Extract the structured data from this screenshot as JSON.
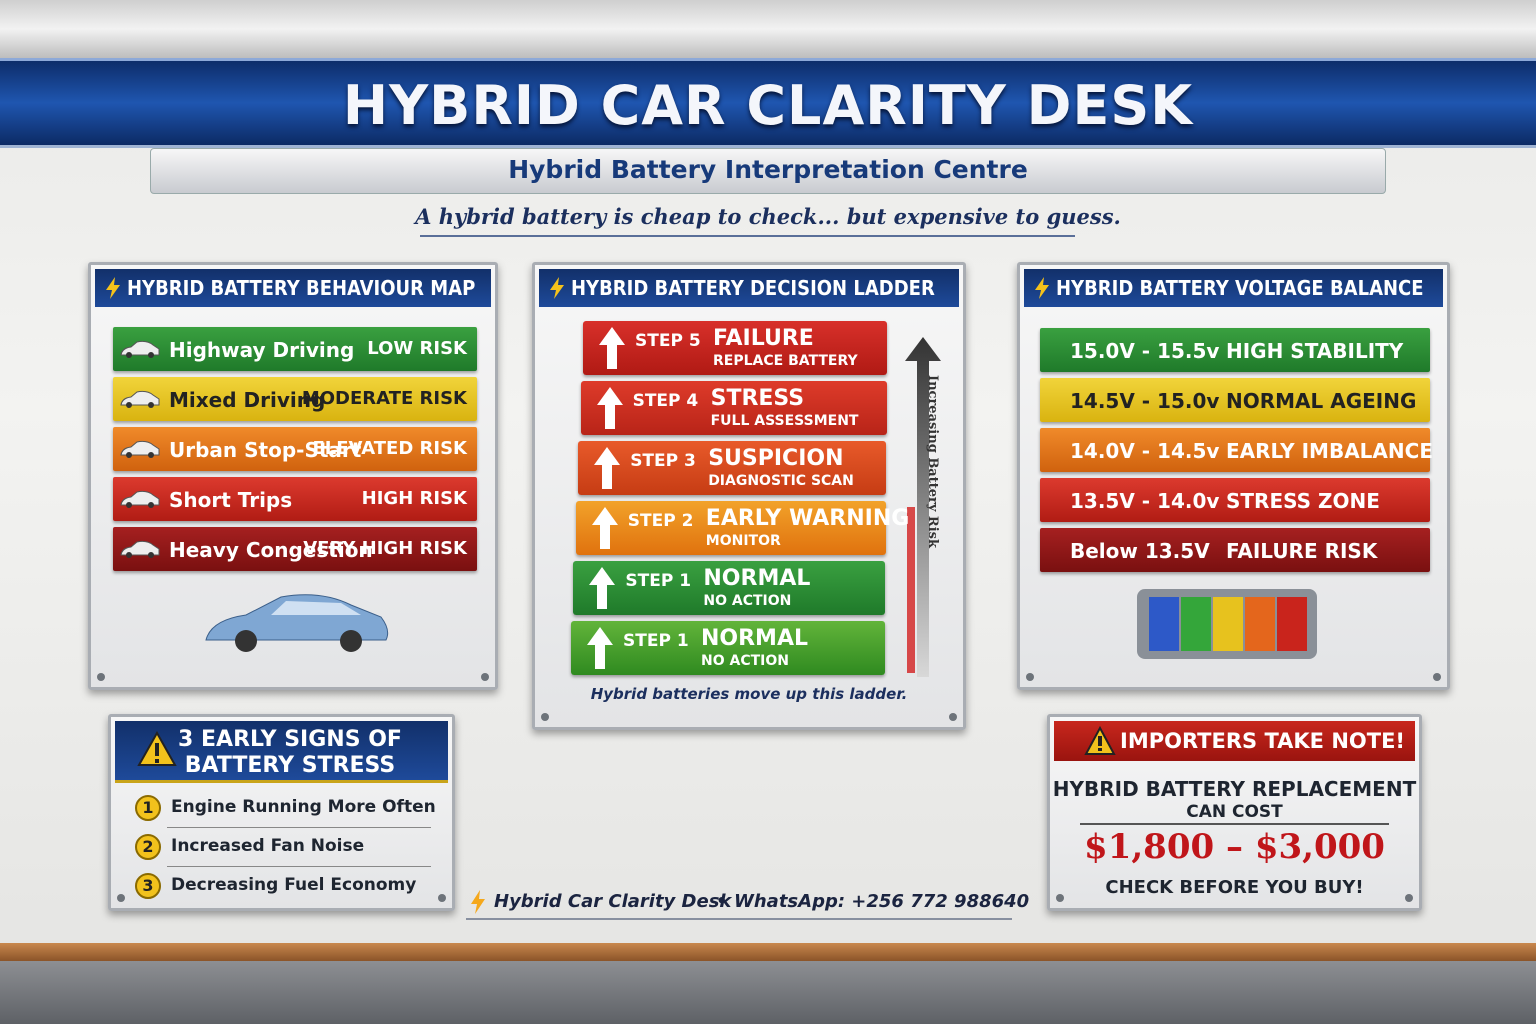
{
  "header": {
    "title": "HYBRID CAR CLARITY DESK",
    "subtitle": "Hybrid Battery Interpretation Centre",
    "tagline": "A hybrid battery is cheap to check... but expensive to guess."
  },
  "behaviour_map": {
    "title": "HYBRID BATTERY BEHAVIOUR MAP",
    "rows": [
      {
        "driving": "Highway Driving",
        "risk": "LOW RISK"
      },
      {
        "driving": "Mixed Driving",
        "risk": "MODERATE RISK"
      },
      {
        "driving": "Urban Stop-Start",
        "risk": "ELEVATED RISK"
      },
      {
        "driving": "Short Trips",
        "risk": "HIGH RISK"
      },
      {
        "driving": "Heavy Congestion",
        "risk": "VERY HIGH RISK"
      }
    ]
  },
  "decision_ladder": {
    "title": "HYBRID BATTERY DECISION LADDER",
    "steps": [
      {
        "step": "STEP 5",
        "label": "FAILURE",
        "action": "REPLACE BATTERY"
      },
      {
        "step": "STEP 4",
        "label": "STRESS",
        "action": "FULL ASSESSMENT"
      },
      {
        "step": "STEP 3",
        "label": "SUSPICION",
        "action": "DIAGNOSTIC SCAN"
      },
      {
        "step": "STEP 2",
        "label": "EARLY WARNING",
        "action": "MONITOR"
      },
      {
        "step": "STEP 1",
        "label": "NORMAL",
        "action": "NO ACTION"
      },
      {
        "step": "STEP 1",
        "label": "NORMAL",
        "action": "NO ACTION"
      }
    ],
    "axis_label": "Increasing Battery Risk",
    "footer": "Hybrid batteries move up this ladder."
  },
  "voltage_balance": {
    "title": "HYBRID BATTERY VOLTAGE BALANCE",
    "rows": [
      {
        "range": "15.0V - 15.5v",
        "status": "HIGH STABILITY"
      },
      {
        "range": "14.5V - 15.0v",
        "status": "NORMAL AGEING"
      },
      {
        "range": "14.0V - 14.5v",
        "status": "EARLY IMBALANCE"
      },
      {
        "range": "13.5V - 14.0v",
        "status": "STRESS ZONE"
      },
      {
        "range": "Below 13.5V",
        "status": "FAILURE RISK"
      }
    ]
  },
  "early_signs": {
    "title": "3 EARLY SIGNS OF BATTERY STRESS",
    "items": [
      {
        "number": "1",
        "text": "Engine Running More Often"
      },
      {
        "number": "2",
        "text": "Increased Fan Noise"
      },
      {
        "number": "3",
        "text": "Decreasing Fuel Economy"
      }
    ]
  },
  "importers_note": {
    "title": "IMPORTERS TAKE NOTE!",
    "line1": "HYBRID BATTERY REPLACEMENT",
    "line2": "CAN COST",
    "price": "$1,800 – $3,000",
    "cta": "CHECK BEFORE YOU BUY!"
  },
  "footer": {
    "name": "Hybrid Car Clarity Desk",
    "contact": "WhatsApp: +256 772 988640"
  }
}
